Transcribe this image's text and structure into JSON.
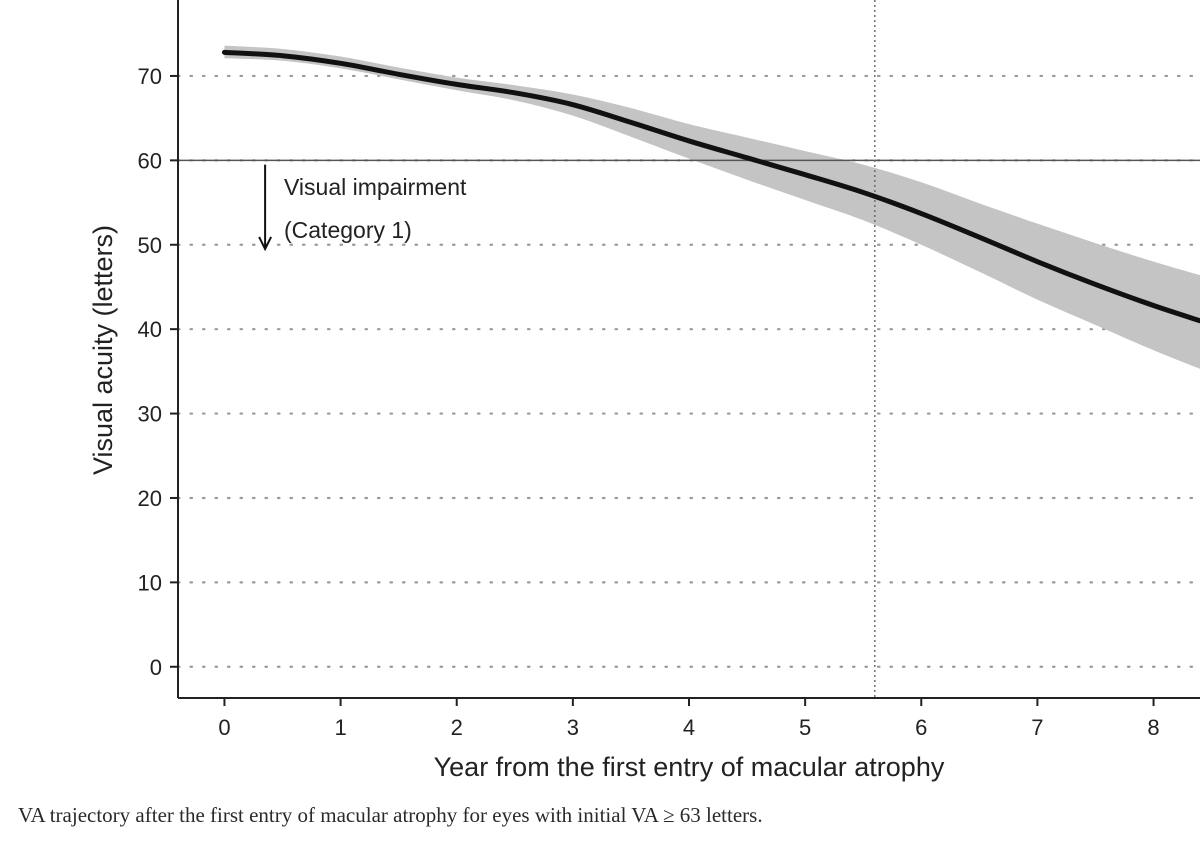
{
  "chart_data": {
    "type": "line",
    "title": "",
    "xlabel": "Year from the first entry of macular atrophy",
    "ylabel": "Visual acuity (letters)",
    "xlim": [
      -0.4,
      8.4
    ],
    "ylim": [
      -3.7,
      79
    ],
    "x_ticks": [
      0,
      1,
      2,
      3,
      4,
      5,
      6,
      7,
      8
    ],
    "y_ticks": [
      0,
      10,
      20,
      30,
      40,
      50,
      60,
      70
    ],
    "grid": "horizontal dotted",
    "series": [
      {
        "x": [
          0,
          0.5,
          1,
          1.5,
          2,
          2.5,
          3,
          3.5,
          4,
          4.5,
          5,
          5.5,
          6,
          6.5,
          7,
          7.5,
          8,
          8.4
        ],
        "values": [
          72.8,
          72.4,
          71.5,
          70.2,
          69.0,
          68.0,
          66.6,
          64.5,
          62.3,
          60.3,
          58.3,
          56.2,
          53.7,
          50.9,
          48.0,
          45.3,
          42.8,
          41.0
        ],
        "ci_lower": [
          72.1,
          71.8,
          70.9,
          69.6,
          68.3,
          67.1,
          65.3,
          62.8,
          60.2,
          57.7,
          55.3,
          52.9,
          50.0,
          46.8,
          43.5,
          40.5,
          37.5,
          35.3
        ],
        "ci_upper": [
          73.6,
          73.2,
          72.3,
          71.0,
          69.8,
          68.9,
          67.8,
          66.2,
          64.3,
          62.7,
          61.1,
          59.5,
          57.4,
          54.9,
          52.5,
          50.2,
          48.0,
          46.4
        ]
      }
    ],
    "reference_lines": {
      "horizontal": 60,
      "vertical": 5.6
    },
    "annotation": {
      "line1": "Visual impairment",
      "line2": "(Category 1)",
      "arrow_x": 0.35,
      "arrow_from": 59.5,
      "arrow_to": 49.5
    },
    "colors": {
      "line": "#111111",
      "ribbon": "#c4c4c4",
      "grid": "#9a9a9a",
      "axis": "#222222"
    }
  },
  "caption": "VA trajectory after the first entry of macular atrophy for eyes with initial VA ≥ 63 letters."
}
